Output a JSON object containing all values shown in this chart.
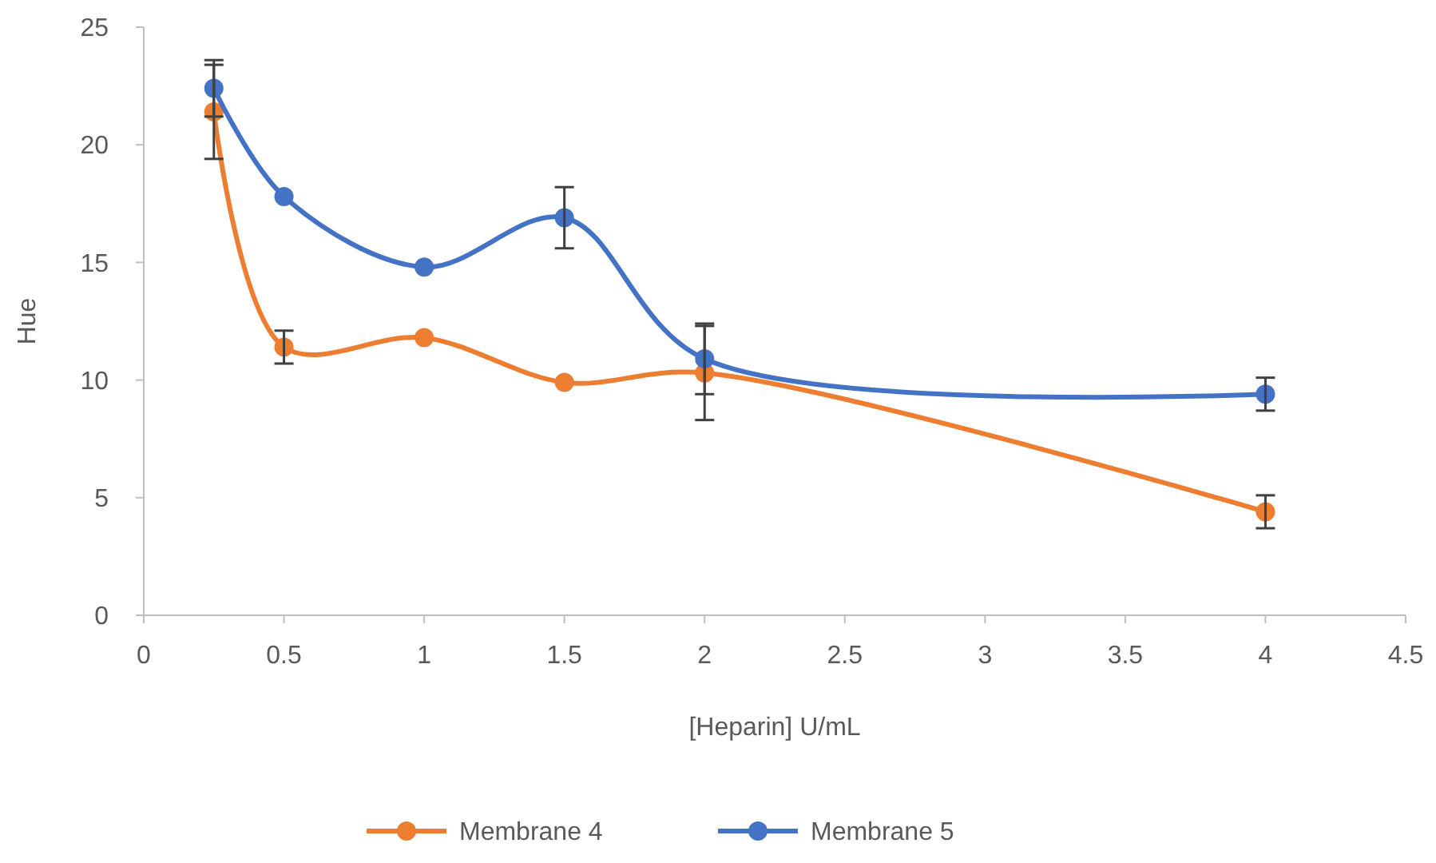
{
  "chart_data": {
    "type": "line",
    "xlabel": "[Heparin] U/mL",
    "ylabel": "Hue",
    "xlim": [
      0,
      4.5
    ],
    "xticks": [
      0,
      0.5,
      1,
      1.5,
      2,
      2.5,
      3,
      3.5,
      4,
      4.5
    ],
    "ylim": [
      0,
      25
    ],
    "yticks": [
      0,
      5,
      10,
      15,
      20,
      25
    ],
    "x": [
      0.25,
      0.5,
      1,
      1.5,
      2,
      4
    ],
    "marker": "circle",
    "legend": "bottom",
    "grid": false,
    "series": [
      {
        "name": "Membrane 4",
        "color": "#ed7d31",
        "values": [
          21.4,
          11.4,
          11.8,
          9.9,
          10.3,
          4.4
        ],
        "errors": [
          2,
          0.7,
          null,
          null,
          2,
          0.7
        ]
      },
      {
        "name": "Membrane 5",
        "color": "#4472c4",
        "values": [
          22.4,
          17.8,
          14.8,
          16.9,
          10.9,
          9.4
        ],
        "errors": [
          1.2,
          null,
          null,
          1.3,
          1.5,
          0.7
        ]
      }
    ]
  }
}
